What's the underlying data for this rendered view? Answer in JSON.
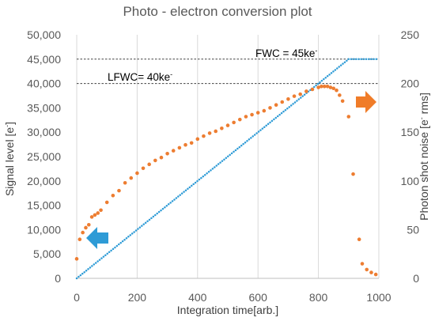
{
  "chart_data": {
    "type": "scatter",
    "title": "Photo - electron conversion plot",
    "xlabel": "Integration time[arb.]",
    "ylabel": "Signal level [e-]",
    "y2label": "Photon shot noise [e- rms]",
    "xlim": [
      0,
      1000
    ],
    "ylim": [
      0,
      50000
    ],
    "y2lim": [
      0,
      250
    ],
    "x_ticks": [
      "0",
      "200",
      "400",
      "600",
      "800",
      "1000"
    ],
    "y_ticks": [
      "0",
      "5,000",
      "10,000",
      "15,000",
      "20,000",
      "25,000",
      "30,000",
      "35,000",
      "40,000",
      "45,000",
      "50,000"
    ],
    "y2_ticks": [
      "0",
      "50",
      "100",
      "150",
      "200",
      "250"
    ],
    "grid": "vertical",
    "reference_lines": [
      {
        "label": "FWC = 45ke",
        "superscript": "-",
        "y": 45000
      },
      {
        "label": "LFWC= 40ke",
        "superscript": "-",
        "y": 40000
      }
    ],
    "series": [
      {
        "axis": "left",
        "color": "#2e9bd6",
        "shape": "linear ramp then saturation",
        "x": [
          0,
          900,
          1000
        ],
        "y": [
          0,
          45000,
          45000
        ]
      },
      {
        "axis": "right",
        "color": "#ed7d31",
        "x": [
          0,
          10,
          20,
          30,
          40,
          50,
          60,
          70,
          80,
          100,
          120,
          140,
          160,
          180,
          200,
          220,
          240,
          260,
          280,
          300,
          320,
          340,
          360,
          380,
          400,
          420,
          440,
          460,
          480,
          500,
          520,
          540,
          560,
          580,
          600,
          620,
          640,
          660,
          680,
          700,
          720,
          740,
          760,
          780,
          800,
          810,
          820,
          830,
          840,
          850,
          860,
          870,
          880,
          900,
          915,
          935,
          945,
          960,
          975,
          990
        ],
        "y": [
          20,
          40,
          47,
          52,
          55,
          63,
          65,
          67,
          70,
          78,
          85,
          90,
          98,
          103,
          108,
          113,
          117,
          121,
          124,
          128,
          131,
          134,
          137,
          139,
          143,
          146,
          149,
          151,
          154,
          157,
          160,
          163,
          166,
          168,
          170,
          172,
          175,
          178,
          181,
          184,
          187,
          189,
          192,
          194,
          196,
          197,
          197,
          197,
          196,
          195,
          193,
          188,
          182,
          166,
          107,
          40,
          15,
          9,
          6,
          4
        ]
      }
    ],
    "arrows": [
      {
        "points_to": "left axis",
        "color": "#2e9bd6"
      },
      {
        "points_to": "right axis",
        "color": "#f07c28"
      }
    ]
  }
}
